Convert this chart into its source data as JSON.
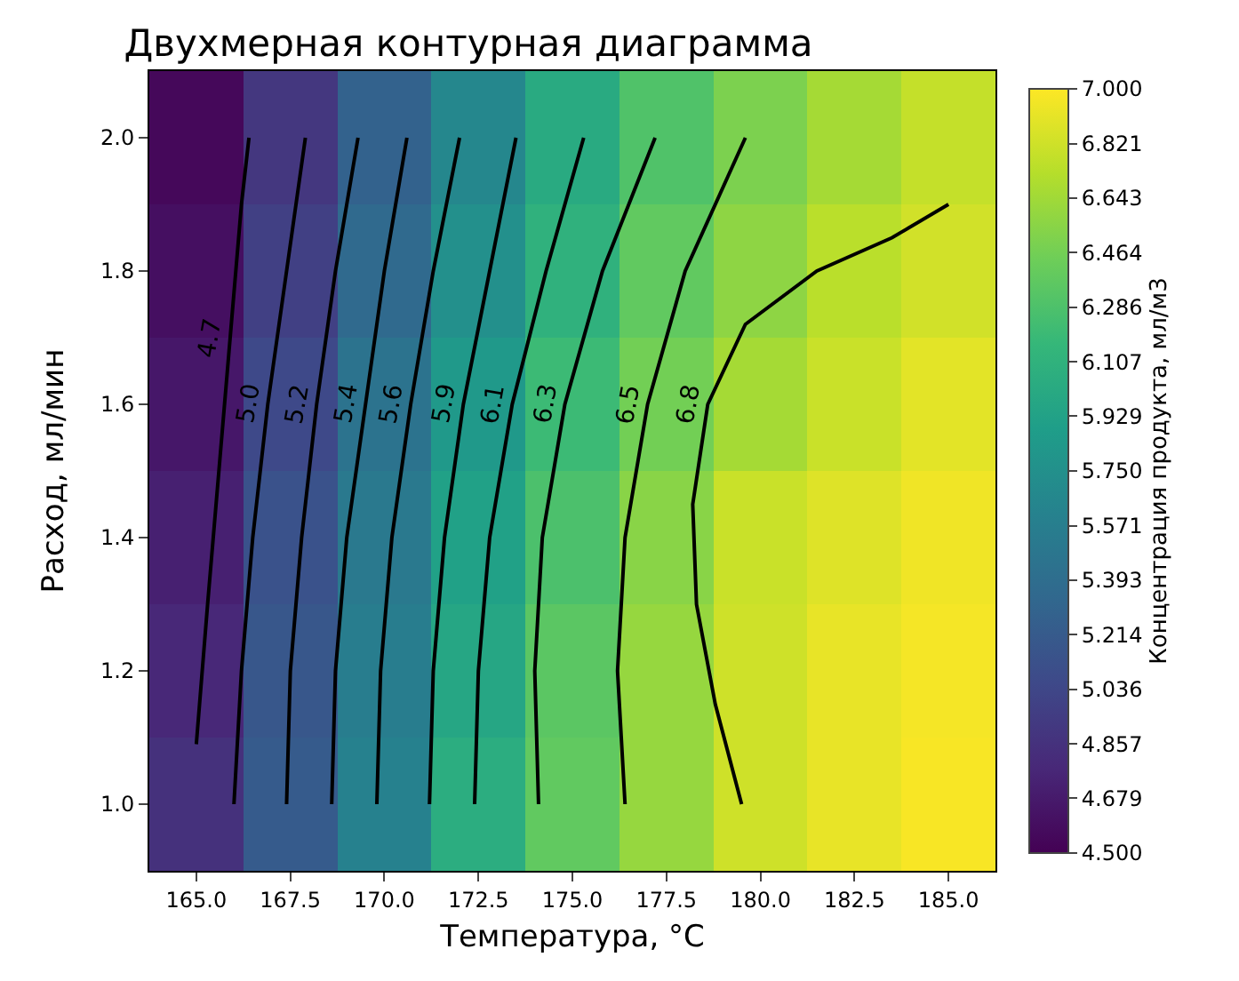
{
  "chart_data": [
    {
      "type": "heatmap",
      "title": "Двухмерная контурная диаграмма",
      "xlabel": "Температура, °C",
      "ylabel": "Расход, мл/мин",
      "clabel": "Концентрация продукта, мл/м3",
      "categories": [
        "165.0",
        "167.5",
        "170.0",
        "172.5",
        "175.0",
        "177.5",
        "180.0",
        "182.5",
        "185.0"
      ],
      "y_categories": [
        "2.0",
        "1.8",
        "1.6",
        "1.4",
        "1.2",
        "1.0"
      ],
      "cells": [
        [
          4.55,
          4.9,
          5.28,
          5.66,
          6.02,
          6.3,
          6.5,
          6.66,
          6.78
        ],
        [
          4.6,
          4.98,
          5.36,
          5.75,
          6.1,
          6.38,
          6.57,
          6.74,
          6.83
        ],
        [
          4.66,
          5.06,
          5.45,
          5.84,
          6.2,
          6.46,
          6.66,
          6.8,
          6.9
        ],
        [
          4.72,
          5.14,
          5.52,
          5.92,
          6.28,
          6.55,
          6.8,
          6.88,
          6.95
        ],
        [
          4.78,
          5.18,
          5.56,
          5.98,
          6.35,
          6.6,
          6.82,
          6.92,
          6.97
        ],
        [
          4.85,
          5.22,
          5.6,
          6.05,
          6.38,
          6.6,
          6.82,
          6.92,
          6.98
        ]
      ],
      "tick_labels": false,
      "clim": [
        4.5,
        7.0
      ],
      "cticks": [
        {
          "value": 4.5,
          "label": "4.500"
        },
        4.679,
        4.857,
        5.036,
        5.214,
        5.393,
        5.571,
        {
          "value": 5.75,
          "label": "5.750"
        },
        5.929,
        6.107,
        6.286,
        6.464,
        6.643,
        6.821,
        {
          "value": 7.0,
          "label": "7.000"
        }
      ]
    },
    {
      "type": "line",
      "xlim": [
        163.75,
        186.25
      ],
      "ylim": [
        0.9,
        2.1
      ],
      "marker": "none",
      "line_style": "solid",
      "xticks": [
        {
          "value": 165,
          "label": "165.0"
        },
        {
          "value": 167.5,
          "label": "167.5"
        },
        {
          "value": 170,
          "label": "170.0"
        },
        {
          "value": 172.5,
          "label": "172.5"
        },
        {
          "value": 175,
          "label": "175.0"
        },
        {
          "value": 177.5,
          "label": "177.5"
        },
        {
          "value": 180,
          "label": "180.0"
        },
        {
          "value": 182.5,
          "label": "182.5"
        },
        {
          "value": 185,
          "label": "185.0"
        }
      ],
      "yticks": [
        {
          "value": 1.0,
          "label": "1.0"
        },
        1.2,
        1.4,
        1.6,
        1.8,
        {
          "value": 2.0,
          "label": "2.0"
        }
      ],
      "series": [
        {
          "name": "4.7",
          "color": "#000000",
          "x": [
            165.0,
            165.3,
            165.6,
            165.9,
            166.2,
            166.4
          ],
          "values": [
            1.09,
            1.3,
            1.5,
            1.7,
            1.9,
            2.0
          ]
        },
        {
          "name": "5.0",
          "color": "#000000",
          "x": [
            166.0,
            166.2,
            166.5,
            166.9,
            167.4,
            167.9
          ],
          "values": [
            1.0,
            1.2,
            1.4,
            1.6,
            1.8,
            2.0
          ]
        },
        {
          "name": "5.2",
          "color": "#000000",
          "x": [
            167.4,
            167.5,
            167.8,
            168.2,
            168.7,
            169.3
          ],
          "values": [
            1.0,
            1.2,
            1.4,
            1.6,
            1.8,
            2.0
          ]
        },
        {
          "name": "5.4",
          "color": "#000000",
          "x": [
            168.6,
            168.7,
            169.0,
            169.5,
            170.0,
            170.6
          ],
          "values": [
            1.0,
            1.2,
            1.4,
            1.6,
            1.8,
            2.0
          ]
        },
        {
          "name": "5.6",
          "color": "#000000",
          "x": [
            169.8,
            169.9,
            170.2,
            170.7,
            171.3,
            172.0
          ],
          "values": [
            1.0,
            1.2,
            1.4,
            1.6,
            1.8,
            2.0
          ]
        },
        {
          "name": "5.9",
          "color": "#000000",
          "x": [
            171.2,
            171.3,
            171.6,
            172.1,
            172.8,
            173.5
          ],
          "values": [
            1.0,
            1.2,
            1.4,
            1.6,
            1.8,
            2.0
          ]
        },
        {
          "name": "6.1",
          "color": "#000000",
          "x": [
            172.4,
            172.5,
            172.8,
            173.4,
            174.3,
            175.3
          ],
          "values": [
            1.0,
            1.2,
            1.4,
            1.6,
            1.8,
            2.0
          ]
        },
        {
          "name": "6.3",
          "color": "#000000",
          "x": [
            174.1,
            174.0,
            174.2,
            174.8,
            175.8,
            177.2
          ],
          "values": [
            1.0,
            1.2,
            1.4,
            1.6,
            1.8,
            2.0
          ]
        },
        {
          "name": "6.5",
          "color": "#000000",
          "x": [
            176.4,
            176.2,
            176.4,
            177.0,
            178.0,
            179.6
          ],
          "values": [
            1.0,
            1.2,
            1.4,
            1.6,
            1.8,
            2.0
          ]
        },
        {
          "name": "6.8",
          "color": "#000000",
          "x": [
            179.5,
            178.8,
            178.3,
            178.2,
            178.6,
            179.6,
            181.5,
            183.5,
            185.0
          ],
          "values": [
            1.0,
            1.15,
            1.3,
            1.45,
            1.6,
            1.72,
            1.8,
            1.85,
            1.9
          ]
        }
      ]
    }
  ]
}
